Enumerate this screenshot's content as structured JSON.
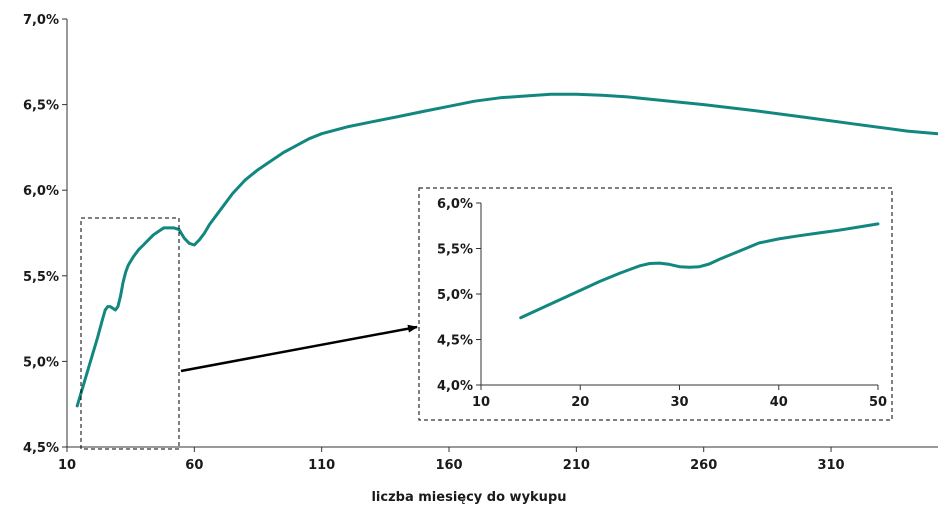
{
  "colors": {
    "line": "#12877f",
    "axis": "#333333",
    "box": "#000000"
  },
  "chart_data": [
    {
      "type": "line",
      "title": "",
      "xlabel": "liczba miesięcy do wykupu",
      "ylabel": "",
      "xlim": [
        10,
        352
      ],
      "ylim": [
        4.5,
        7.0
      ],
      "xticks": [
        10,
        60,
        110,
        160,
        210,
        260,
        310
      ],
      "yticks": [
        4.5,
        5.0,
        5.5,
        6.0,
        6.5,
        7.0
      ],
      "ytick_labels": [
        "4,5%",
        "5,0%",
        "5,5%",
        "6,0%",
        "6,5%",
        "7,0%"
      ],
      "grid": false,
      "series": [
        {
          "x": [
            14,
            16,
            18,
            20,
            22,
            24,
            25,
            26,
            27,
            28,
            29,
            30,
            31,
            32,
            33,
            34,
            36,
            38,
            40,
            42,
            44,
            46,
            48,
            50,
            52,
            54,
            56,
            58,
            60,
            62,
            64,
            66,
            70,
            75,
            80,
            85,
            90,
            95,
            100,
            105,
            110,
            115,
            120,
            130,
            140,
            150,
            160,
            170,
            180,
            190,
            200,
            210,
            220,
            230,
            240,
            260,
            280,
            300,
            320,
            340,
            352
          ],
          "y": [
            4.74,
            4.84,
            4.94,
            5.04,
            5.14,
            5.25,
            5.3,
            5.32,
            5.32,
            5.31,
            5.3,
            5.32,
            5.38,
            5.46,
            5.52,
            5.56,
            5.61,
            5.65,
            5.68,
            5.71,
            5.74,
            5.76,
            5.78,
            5.78,
            5.78,
            5.77,
            5.72,
            5.69,
            5.68,
            5.71,
            5.75,
            5.8,
            5.88,
            5.98,
            6.06,
            6.12,
            6.17,
            6.22,
            6.26,
            6.3,
            6.33,
            6.35,
            6.37,
            6.4,
            6.43,
            6.46,
            6.49,
            6.52,
            6.54,
            6.55,
            6.56,
            6.56,
            6.555,
            6.545,
            6.53,
            6.5,
            6.465,
            6.425,
            6.385,
            6.345,
            6.33
          ]
        }
      ]
    },
    {
      "type": "line",
      "title": "",
      "xlabel": "",
      "ylabel": "",
      "xlim": [
        10,
        50
      ],
      "ylim": [
        4.0,
        6.0
      ],
      "xticks": [
        10,
        20,
        30,
        40,
        50
      ],
      "yticks": [
        4.0,
        4.5,
        5.0,
        5.5,
        6.0
      ],
      "ytick_labels": [
        "4,0%",
        "4,5%",
        "5,0%",
        "5,5%",
        "6,0%"
      ],
      "grid": false,
      "series": [
        {
          "x": [
            14,
            16,
            18,
            20,
            22,
            24,
            26,
            27,
            28,
            29,
            30,
            31,
            32,
            33,
            34,
            36,
            38,
            40,
            42,
            44,
            46,
            48,
            50
          ],
          "y": [
            4.74,
            4.84,
            4.94,
            5.04,
            5.14,
            5.23,
            5.31,
            5.335,
            5.34,
            5.325,
            5.3,
            5.295,
            5.3,
            5.33,
            5.38,
            5.47,
            5.56,
            5.605,
            5.64,
            5.67,
            5.7,
            5.735,
            5.77
          ]
        }
      ]
    }
  ]
}
